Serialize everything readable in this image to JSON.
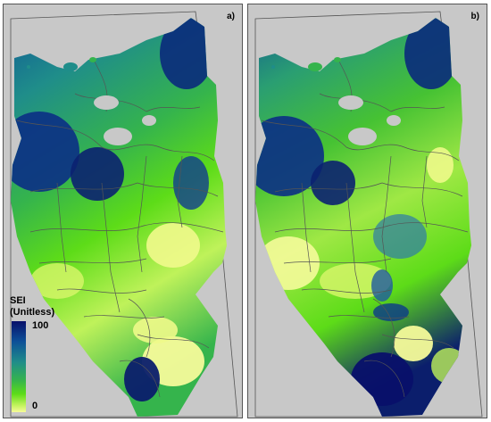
{
  "panels": [
    {
      "label": "a)"
    },
    {
      "label": "b)"
    }
  ],
  "legend": {
    "title_line1": "SEI",
    "title_line2": "(Unitless)",
    "max_label": "100",
    "min_label": "0",
    "range": [
      0,
      100
    ],
    "colors": [
      "#08106a",
      "#0d4f98",
      "#1f8d8a",
      "#35b44c",
      "#5ddc18",
      "#bff25a",
      "#f7fb9a"
    ]
  },
  "colors": {
    "background": "#c8c8c8",
    "boundary": "#555555"
  }
}
